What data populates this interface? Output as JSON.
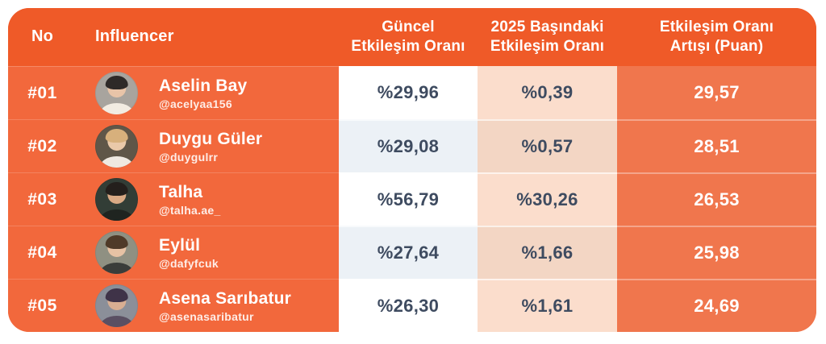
{
  "table": {
    "headers": {
      "no": "No",
      "influencer": "Influencer",
      "current_rate": "Güncel\nEtkileşim Oranı",
      "start_2025_rate": "2025 Başındaki\nEtkileşim Oranı",
      "increase_points": "Etkileşim Oranı\nArtışı (Puan)"
    },
    "rows": [
      {
        "rank": "#01",
        "name": "Aselin Bay",
        "handle": "@acelyaa156",
        "current_rate": "%29,96",
        "start_2025_rate": "%0,39",
        "increase_points": "29,57",
        "avatar": {
          "bg": "#A8A49E",
          "hair": "#2E2A28",
          "skin": "#E8C4A8",
          "shirt": "#F2ECE2"
        }
      },
      {
        "rank": "#02",
        "name": "Duygu Güler",
        "handle": "@duygulrr",
        "current_rate": "%29,08",
        "start_2025_rate": "%0,57",
        "increase_points": "28,51",
        "avatar": {
          "bg": "#5F5648",
          "hair": "#D7B07C",
          "skin": "#EAC9A9",
          "shirt": "#EFE9E1"
        }
      },
      {
        "rank": "#03",
        "name": "Talha",
        "handle": "@talha.ae_",
        "current_rate": "%56,79",
        "start_2025_rate": "%30,26",
        "increase_points": "26,53",
        "avatar": {
          "bg": "#323D36",
          "hair": "#241F1C",
          "skin": "#D9A984",
          "shirt": "#1F2420"
        }
      },
      {
        "rank": "#04",
        "name": "Eylül",
        "handle": "@dafyfcuk",
        "current_rate": "%27,64",
        "start_2025_rate": "%1,66",
        "increase_points": "25,98",
        "avatar": {
          "bg": "#8F9082",
          "hair": "#4F3A28",
          "skin": "#E6C2A4",
          "shirt": "#3A3D3A"
        }
      },
      {
        "rank": "#05",
        "name": "Asena Sarıbatur",
        "handle": "@asenasaribatur",
        "current_rate": "%26,30",
        "start_2025_rate": "%1,61",
        "increase_points": "24,69",
        "avatar": {
          "bg": "#8B8F99",
          "hair": "#3F3348",
          "skin": "#D8AE92",
          "shirt": "#5A4F62"
        }
      }
    ]
  },
  "colors": {
    "header_bg": "#EF5A28",
    "left_bg": "#F2683C",
    "col_current_odd": "#FFFFFF",
    "col_current_even": "#ECF1F6",
    "col_start_odd": "#FBDDCC",
    "col_start_even": "#F3D6C4",
    "col_increase_bg": "#F0764D",
    "value_text": "#3E4B60",
    "header_text": "#FFFFFF",
    "page_bg": "#FFFFFF"
  },
  "chart_data": {
    "type": "table",
    "title": "Influencer etkileşim oranı sıralaması",
    "columns": [
      "No",
      "Influencer",
      "Güncel Etkileşim Oranı",
      "2025 Başındaki Etkileşim Oranı",
      "Etkileşim Oranı Artışı (Puan)"
    ],
    "rows": [
      [
        "#01",
        "Aselin Bay (@acelyaa156)",
        29.96,
        0.39,
        29.57
      ],
      [
        "#02",
        "Duygu Güler (@duygulrr)",
        29.08,
        0.57,
        28.51
      ],
      [
        "#03",
        "Talha (@talha.ae_)",
        56.79,
        30.26,
        26.53
      ],
      [
        "#04",
        "Eylül (@dafyfcuk)",
        27.64,
        1.66,
        25.98
      ],
      [
        "#05",
        "Asena Sarıbatur (@asenasaribatur)",
        26.3,
        1.61,
        24.69
      ]
    ],
    "value_format": "percent, Turkish decimal comma; last column in points"
  }
}
